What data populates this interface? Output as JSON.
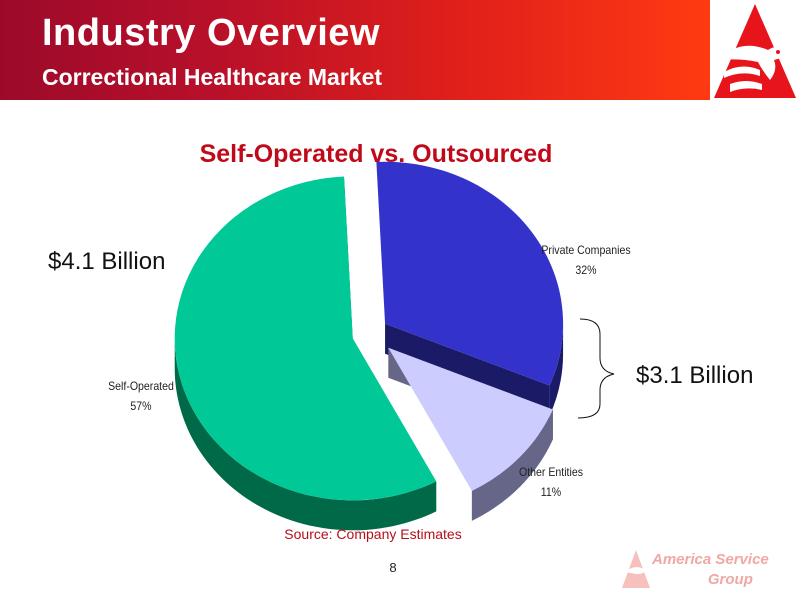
{
  "header": {
    "title": "Industry Overview",
    "subtitle": "Correctional Healthcare Market"
  },
  "colors": {
    "header_start": "#9c0a2a",
    "header_end": "#ff3a12",
    "title_red": "#c00a1a",
    "self_operated": "#00c896",
    "private_companies": "#3333cc",
    "other_entities": "#ccccff"
  },
  "chart_data": {
    "type": "pie",
    "title": "Self-Operated vs. Outsourced",
    "slices": [
      {
        "name": "Self-Operated",
        "value": 57,
        "label": "57%",
        "color": "#00c896",
        "side_color": "#006a48"
      },
      {
        "name": "Private Companies",
        "value": 32,
        "label": "32%",
        "color": "#3333cc",
        "side_color": "#1a1a66"
      },
      {
        "name": "Other Entities",
        "value": 11,
        "label": "11%",
        "color": "#ccccff",
        "side_color": "#666688"
      }
    ],
    "annotations": {
      "self_operated_total": "$4.1 Billion",
      "outsourced_total": "$3.1 Billion"
    },
    "legend": "none",
    "style": "3d-exploded"
  },
  "source": "Source: Company Estimates",
  "page_number": "8",
  "footer": {
    "brand_line1": "America Service",
    "brand_line2": "Group"
  }
}
